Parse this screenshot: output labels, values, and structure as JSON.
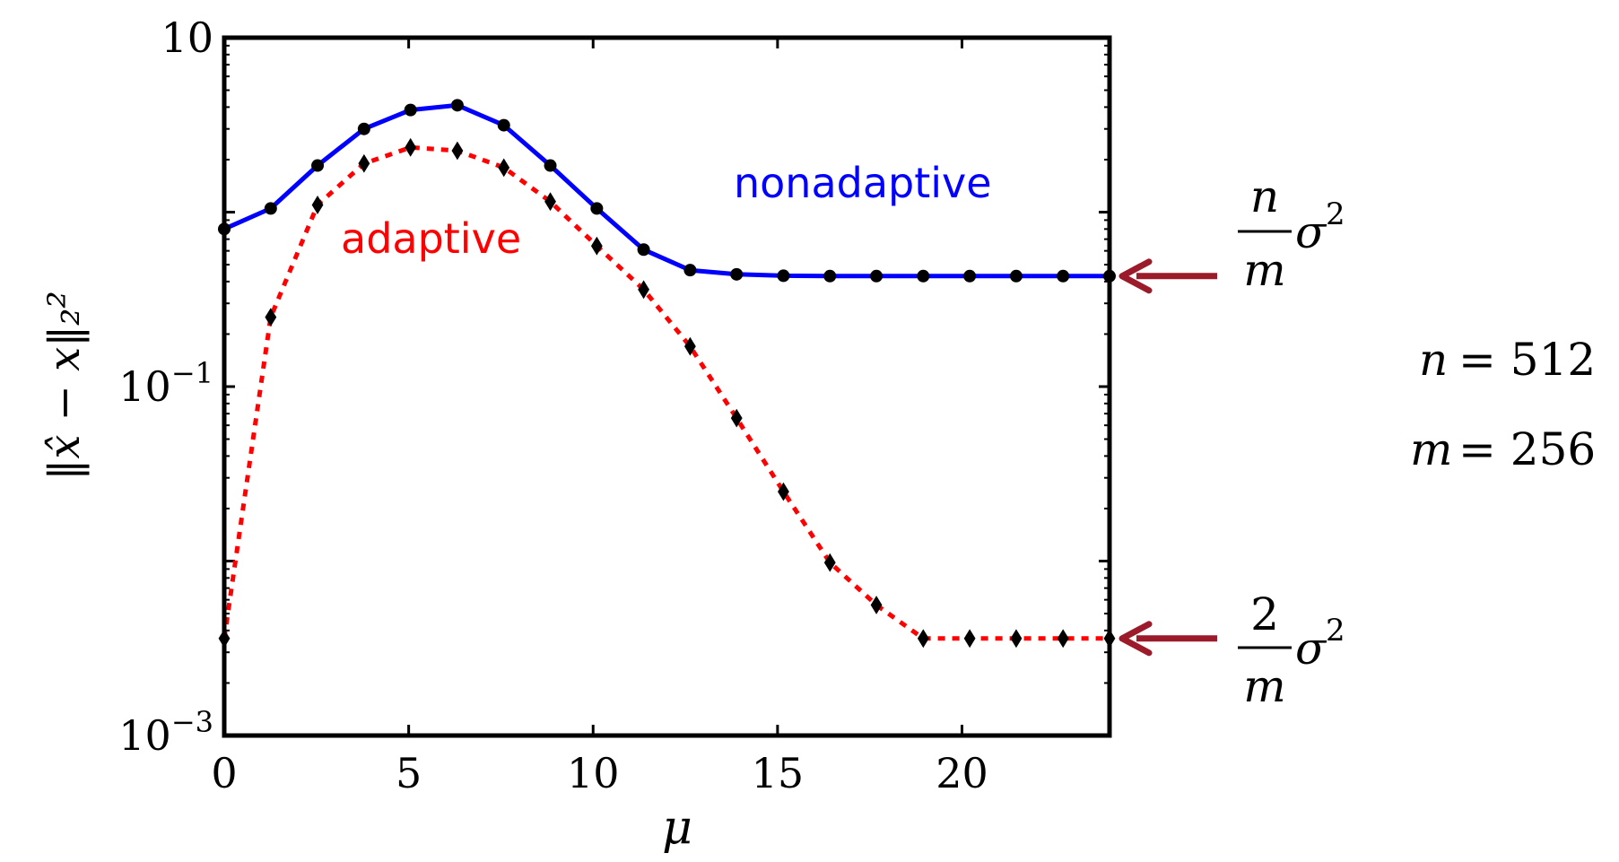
{
  "chart_data": {
    "type": "line",
    "title": "",
    "xlabel": "μ",
    "ylabel": "‖x̂ − x‖₂²",
    "xlim": [
      0,
      24
    ],
    "ylim": [
      0.001,
      10
    ],
    "yscale": "log",
    "grid": false,
    "x_ticks": [
      "0",
      "5",
      "10",
      "15",
      "20"
    ],
    "y_ticks": [
      {
        "base": "10",
        "exp": "-3"
      },
      {
        "base": "10",
        "exp": "-1"
      },
      {
        "base": "10",
        "exp": ""
      }
    ],
    "x": [
      0,
      1.26,
      2.53,
      3.79,
      5.05,
      6.32,
      7.58,
      8.84,
      10.1,
      11.37,
      12.63,
      13.89,
      15.16,
      16.42,
      17.68,
      18.95,
      20.21,
      21.47,
      22.74,
      24
    ],
    "series": [
      {
        "name": "nonadaptive",
        "color": "#0000ff",
        "line": "solid",
        "marker": "circle",
        "values": [
          0.8,
          1.05,
          1.85,
          3.0,
          3.85,
          4.1,
          3.15,
          1.85,
          1.05,
          0.61,
          0.465,
          0.44,
          0.432,
          0.43,
          0.43,
          0.43,
          0.43,
          0.43,
          0.43,
          0.43
        ]
      },
      {
        "name": "adaptive",
        "color": "#ff0000",
        "line": "dotted",
        "marker": "diamond",
        "values": [
          0.0036,
          0.25,
          1.1,
          1.9,
          2.35,
          2.25,
          1.8,
          1.15,
          0.64,
          0.36,
          0.17,
          0.066,
          0.025,
          0.0098,
          0.0056,
          0.0036,
          0.0036,
          0.0036,
          0.0036,
          0.0036
        ]
      }
    ],
    "annotations": {
      "upper_fraction_num": "n",
      "upper_fraction_den": "m",
      "upper_sigma": "σ",
      "upper_power": "2",
      "lower_fraction_num": "2",
      "lower_fraction_den": "m",
      "lower_sigma": "σ",
      "lower_power": "2",
      "n_label": "n",
      "n_value": "= 512",
      "m_label": "m",
      "m_value": "= 256"
    },
    "arrow_color": "#9b1b2a"
  }
}
